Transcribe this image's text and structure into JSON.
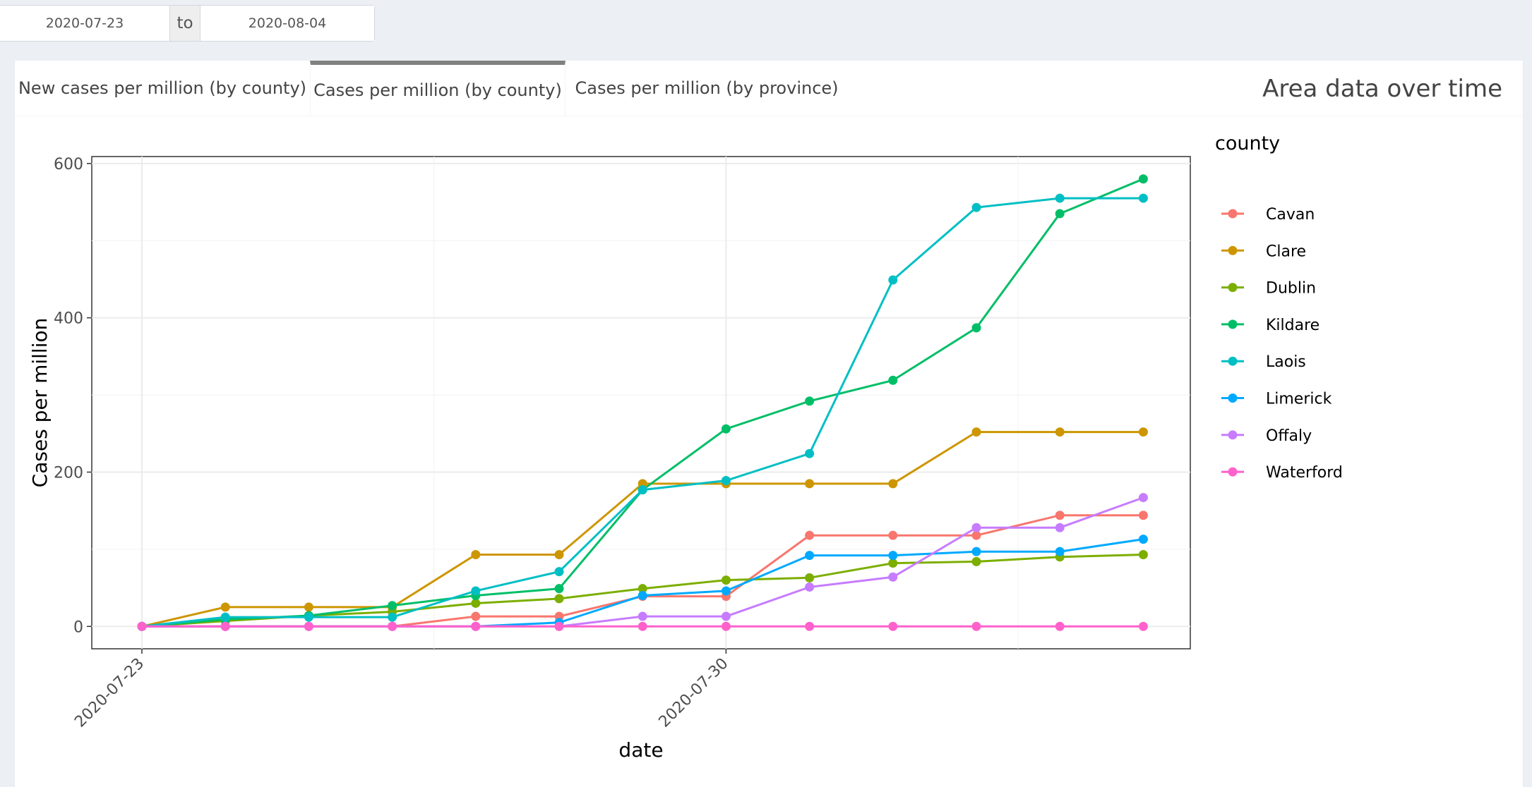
{
  "date_range": {
    "start": "2020-07-23",
    "separator": "to",
    "end": "2020-08-04"
  },
  "tabs": [
    {
      "label": "New cases per million (by county)",
      "active": false
    },
    {
      "label": "Cases per million (by county)",
      "active": true
    },
    {
      "label": "Cases per million (by province)",
      "active": false
    }
  ],
  "box_title": "Area data over time",
  "colors": {
    "tab_active_border": "#808080",
    "background": "#ecf0f5"
  },
  "chart_data": {
    "type": "line",
    "xlabel": "date",
    "ylabel": "Cases per million",
    "legend_title": "county",
    "legend_position": "right",
    "grid": true,
    "x": [
      "2020-07-23",
      "2020-07-24",
      "2020-07-25",
      "2020-07-26",
      "2020-07-27",
      "2020-07-28",
      "2020-07-29",
      "2020-07-30",
      "2020-07-31",
      "2020-08-01",
      "2020-08-02",
      "2020-08-03",
      "2020-08-04"
    ],
    "x_tick_labels": [
      "2020-07-23",
      "2020-07-30"
    ],
    "y_ticks": [
      0,
      200,
      400,
      600
    ],
    "ylim": [
      -29,
      609
    ],
    "series": [
      {
        "name": "Cavan",
        "color": "#F8766D",
        "values": [
          0,
          0,
          0,
          0,
          13,
          13,
          39,
          39,
          118,
          118,
          118,
          144,
          144
        ]
      },
      {
        "name": "Clare",
        "color": "#CD9600",
        "values": [
          0,
          25,
          25,
          25,
          93,
          93,
          185,
          185,
          185,
          185,
          252,
          252,
          252
        ]
      },
      {
        "name": "Dublin",
        "color": "#7CAE00",
        "values": [
          0,
          7,
          14,
          19,
          30,
          36,
          49,
          60,
          63,
          82,
          84,
          90,
          93
        ]
      },
      {
        "name": "Kildare",
        "color": "#00BE67",
        "values": [
          0,
          9,
          14,
          27,
          40,
          49,
          177,
          256,
          292,
          319,
          387,
          535,
          580
        ]
      },
      {
        "name": "Laois",
        "color": "#00BFC4",
        "values": [
          0,
          12,
          12,
          12,
          46,
          71,
          177,
          189,
          224,
          449,
          543,
          555,
          555
        ]
      },
      {
        "name": "Limerick",
        "color": "#00A9FF",
        "values": [
          0,
          0,
          0,
          0,
          0,
          5,
          40,
          46,
          92,
          92,
          97,
          97,
          113
        ]
      },
      {
        "name": "Offaly",
        "color": "#C77CFF",
        "values": [
          0,
          0,
          0,
          0,
          0,
          0,
          13,
          13,
          51,
          64,
          128,
          128,
          167
        ]
      },
      {
        "name": "Waterford",
        "color": "#FF61CC",
        "values": [
          0,
          0,
          0,
          0,
          0,
          0,
          0,
          0,
          0,
          0,
          0,
          0,
          0
        ]
      }
    ]
  }
}
